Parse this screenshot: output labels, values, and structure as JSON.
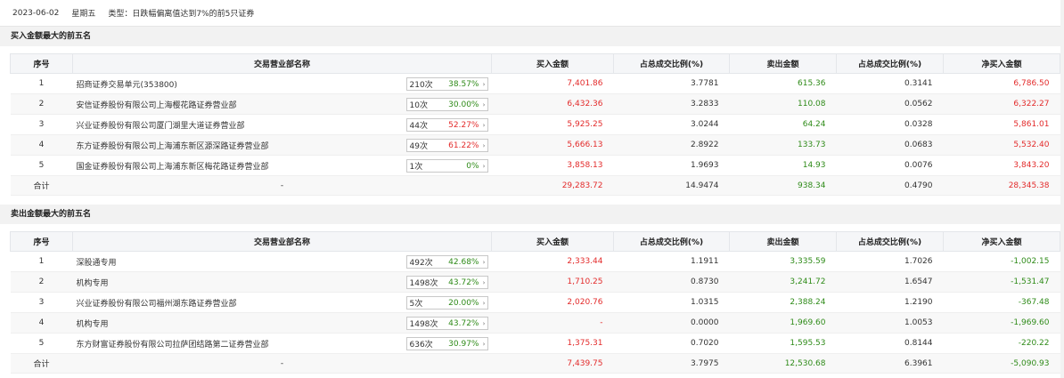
{
  "header": {
    "date": "2023-06-02",
    "weekday": "星期五",
    "type": "类型：日跌幅偏离值达到7%的前5只证券"
  },
  "columns": [
    "序号",
    "交易营业部名称",
    "买入金额",
    "占总成交比例(%)",
    "卖出金额",
    "占总成交比例(%)",
    "净买入金额"
  ],
  "buy_section": {
    "title": "买入金额最大的前五名",
    "rows": [
      {
        "idx": "1",
        "name": "招商证券交易单元(353800)",
        "count": "210次",
        "pct": "38.57%",
        "buy": "7,401.86",
        "buy_ratio": "3.7781",
        "sell": "615.36",
        "sell_ratio": "0.3141",
        "net": "6,786.50"
      },
      {
        "idx": "2",
        "name": "安信证券股份有限公司上海樱花路证券营业部",
        "count": "10次",
        "pct": "30.00%",
        "buy": "6,432.36",
        "buy_ratio": "3.2833",
        "sell": "110.08",
        "sell_ratio": "0.0562",
        "net": "6,322.27"
      },
      {
        "idx": "3",
        "name": "兴业证券股份有限公司厦门湖里大道证券营业部",
        "count": "44次",
        "pct": "52.27%",
        "buy": "5,925.25",
        "buy_ratio": "3.0244",
        "sell": "64.24",
        "sell_ratio": "0.0328",
        "net": "5,861.01"
      },
      {
        "idx": "4",
        "name": "东方证券股份有限公司上海浦东新区源深路证券营业部",
        "count": "49次",
        "pct": "61.22%",
        "buy": "5,666.13",
        "buy_ratio": "2.8922",
        "sell": "133.73",
        "sell_ratio": "0.0683",
        "net": "5,532.40"
      },
      {
        "idx": "5",
        "name": "国金证券股份有限公司上海浦东新区梅花路证券营业部",
        "count": "1次",
        "pct": "0%",
        "buy": "3,858.13",
        "buy_ratio": "1.9693",
        "sell": "14.93",
        "sell_ratio": "0.0076",
        "net": "3,843.20"
      }
    ],
    "total": {
      "label": "合计",
      "name": "-",
      "buy": "29,283.72",
      "buy_ratio": "14.9474",
      "sell": "938.34",
      "sell_ratio": "0.4790",
      "net": "28,345.38"
    }
  },
  "sell_section": {
    "title": "卖出金额最大的前五名",
    "rows": [
      {
        "idx": "1",
        "name": "深股通专用",
        "count": "492次",
        "pct": "42.68%",
        "buy": "2,333.44",
        "buy_ratio": "1.1911",
        "sell": "3,335.59",
        "sell_ratio": "1.7026",
        "net": "-1,002.15"
      },
      {
        "idx": "2",
        "name": "机构专用",
        "count": "1498次",
        "pct": "43.72%",
        "buy": "1,710.25",
        "buy_ratio": "0.8730",
        "sell": "3,241.72",
        "sell_ratio": "1.6547",
        "net": "-1,531.47"
      },
      {
        "idx": "3",
        "name": "兴业证券股份有限公司福州湖东路证券营业部",
        "count": "5次",
        "pct": "20.00%",
        "buy": "2,020.76",
        "buy_ratio": "1.0315",
        "sell": "2,388.24",
        "sell_ratio": "1.2190",
        "net": "-367.48"
      },
      {
        "idx": "4",
        "name": "机构专用",
        "count": "1498次",
        "pct": "43.72%",
        "buy": "-",
        "buy_ratio": "0.0000",
        "sell": "1,969.60",
        "sell_ratio": "1.0053",
        "net": "-1,969.60"
      },
      {
        "idx": "5",
        "name": "东方财富证券股份有限公司拉萨团结路第二证券营业部",
        "count": "636次",
        "pct": "30.97%",
        "buy": "1,375.31",
        "buy_ratio": "0.7020",
        "sell": "1,595.53",
        "sell_ratio": "0.8144",
        "net": "-220.22"
      }
    ],
    "total": {
      "label": "合计",
      "name": "-",
      "buy": "7,439.75",
      "buy_ratio": "3.7975",
      "sell": "12,530.68",
      "sell_ratio": "6.3961",
      "net": "-5,090.93"
    }
  },
  "colors": {
    "red": "#e32b2b",
    "green": "#2f8b19",
    "header_bg": "#f5f6f8",
    "section_bg": "#f2f2f2"
  }
}
